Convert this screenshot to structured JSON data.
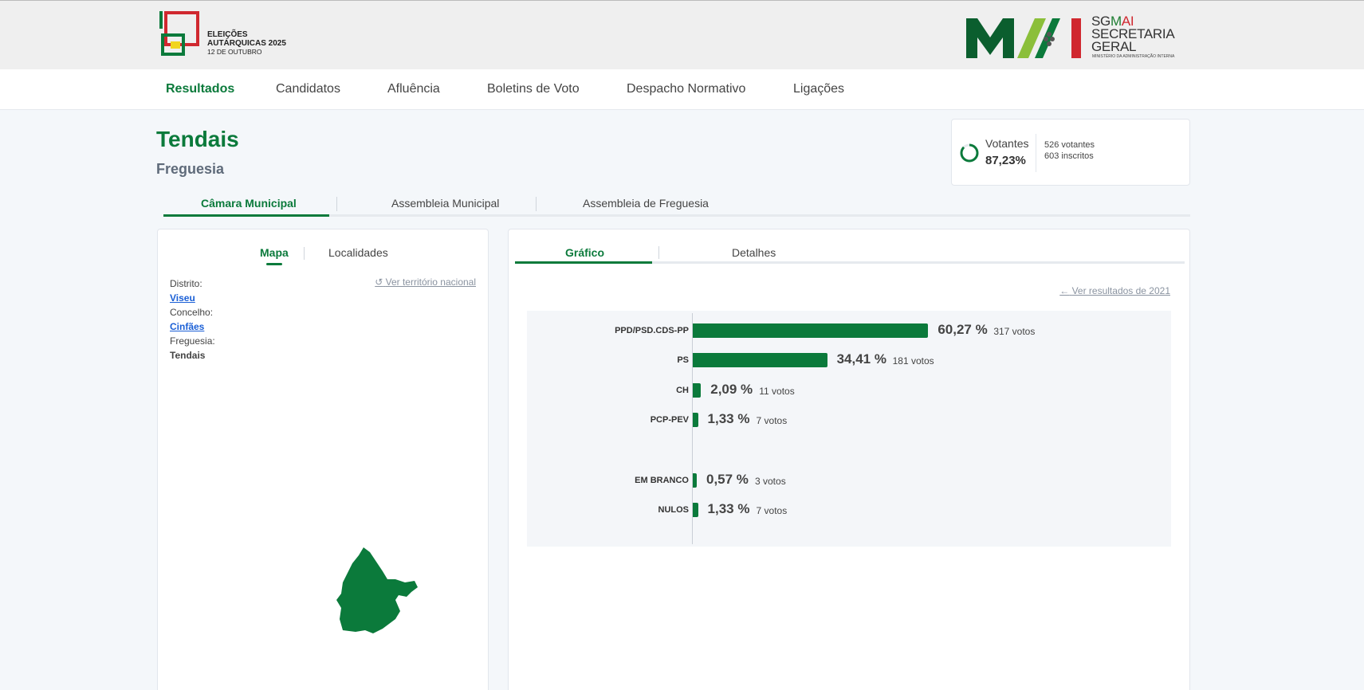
{
  "header": {
    "election_title_line1": "ELEIÇÕES",
    "election_title_line2": "AUTÁRQUICAS 2025",
    "election_date": "12 DE OUTUBRO",
    "sg_brand_sg": "SG",
    "sg_brand_mai_m": "M",
    "sg_brand_mai_ai": "AI",
    "sg_line2": "SECRETARIA",
    "sg_line3": "GERAL",
    "ministry": "MINISTÉRIO DA ADMINISTRAÇÃO INTERNA"
  },
  "nav": {
    "items": [
      "Resultados",
      "Candidatos",
      "Afluência",
      "Boletins de Voto",
      "Despacho Normativo",
      "Ligações"
    ],
    "active": "Resultados"
  },
  "page": {
    "title": "Tendais",
    "subtitle": "Freguesia"
  },
  "votantes": {
    "label": "Votantes",
    "percent": "87,23%",
    "percent_value": 87.23,
    "voters": "526 votantes",
    "registered": "603 inscritos"
  },
  "election_tabs": [
    "Câmara Municipal",
    "Assembleia Municipal",
    "Assembleia de Freguesia"
  ],
  "left_panel": {
    "tabs": [
      "Mapa",
      "Localidades"
    ],
    "ver_territorio": "Ver território nacional",
    "distrito_label": "Distrito:",
    "distrito_value": "Viseu",
    "concelho_label": "Concelho:",
    "concelho_value": "Cinfães",
    "freguesia_label": "Freguesia:",
    "freguesia_value": "Tendais"
  },
  "right_panel": {
    "tabs": [
      "Gráfico",
      "Detalhes"
    ],
    "ver_2021": "Ver resultados de 2021"
  },
  "colors": {
    "accent": "#0b7a3b",
    "muted": "#8a93a0",
    "link": "#1a5fd6"
  },
  "chart_data": {
    "type": "bar",
    "orientation": "horizontal",
    "categories": [
      "PPD/PSD.CDS-PP",
      "PS",
      "CH",
      "PCP-PEV",
      "EM BRANCO",
      "NULOS"
    ],
    "values": [
      60.27,
      34.41,
      2.09,
      1.33,
      0.57,
      1.33
    ],
    "value_labels": [
      "60,27 %",
      "34,41 %",
      "2,09 %",
      "1,33 %",
      "0,57 %",
      "1,33 %"
    ],
    "votes": [
      "317 votos",
      "181 votos",
      "11 votos",
      "7 votos",
      "3 votos",
      "7 votos"
    ],
    "xlim": [
      0,
      100
    ]
  }
}
